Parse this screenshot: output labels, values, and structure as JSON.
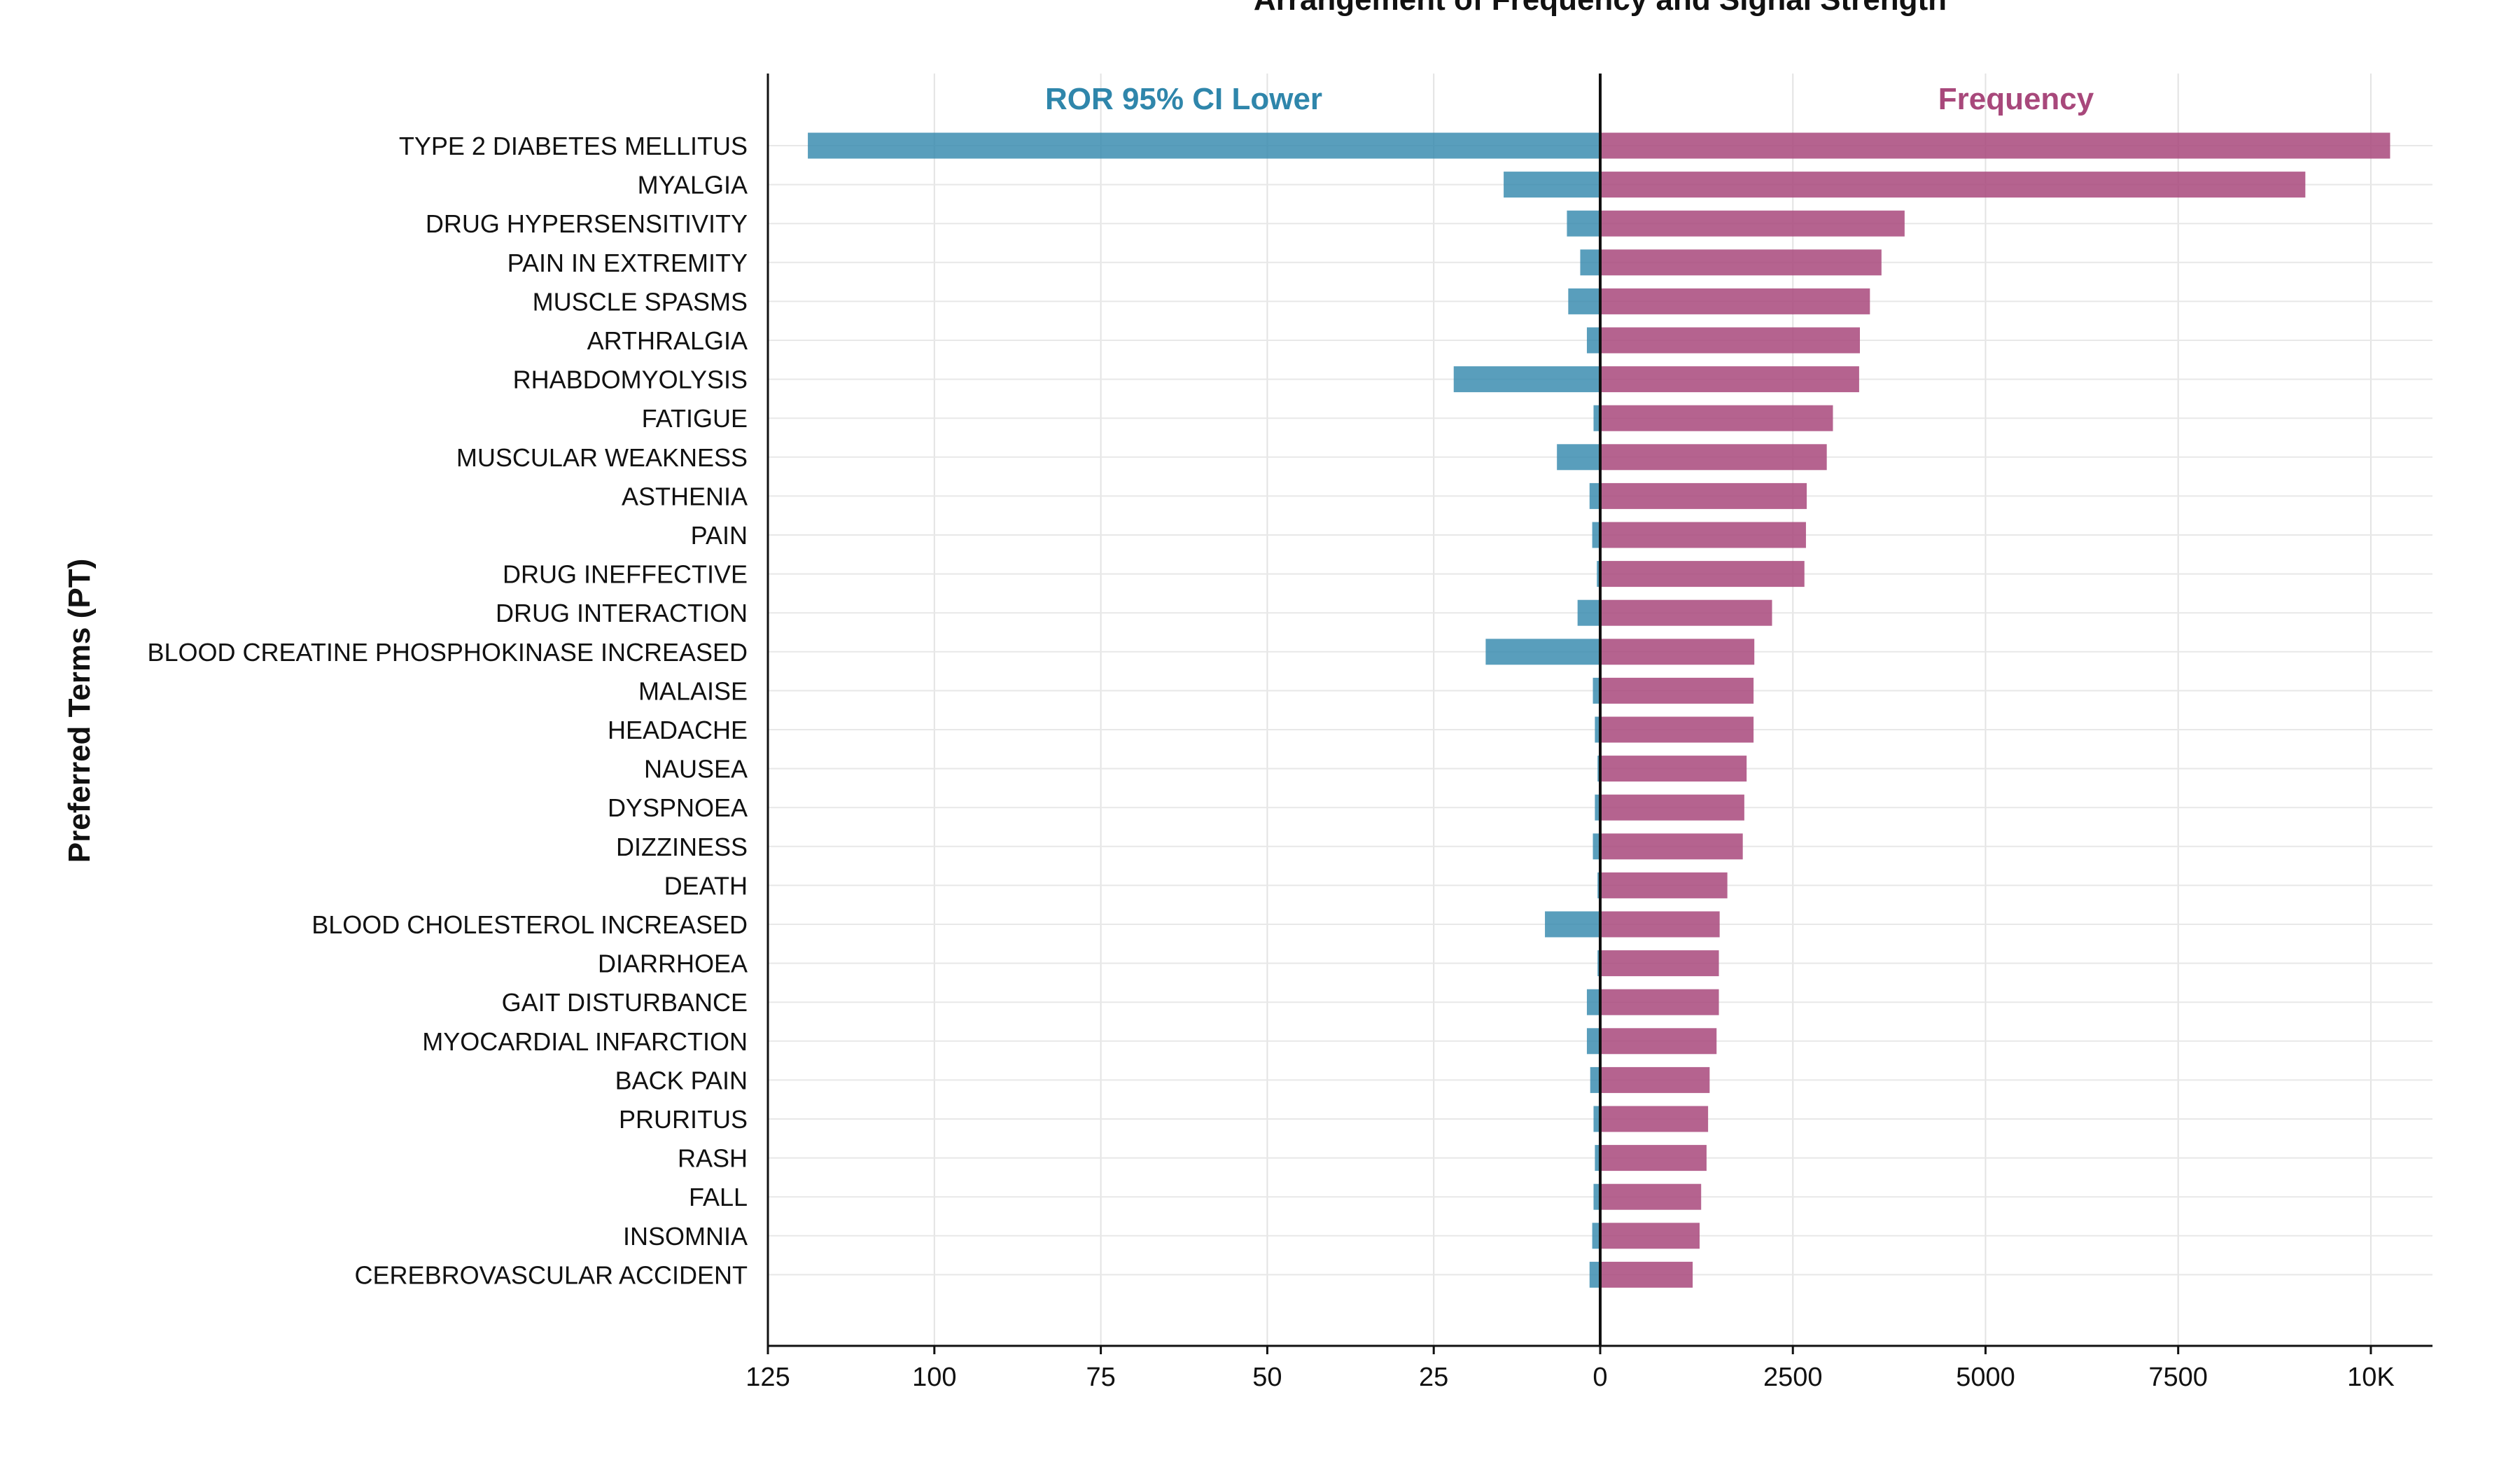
{
  "chart_data": {
    "type": "bar",
    "orientation": "horizontal-diverging",
    "title": "Arrangement of Frequency and Signal Strength",
    "ylabel": "Preferred Terms (PT)",
    "categories": [
      "TYPE 2 DIABETES MELLITUS",
      "MYALGIA",
      "DRUG HYPERSENSITIVITY",
      "PAIN IN EXTREMITY",
      "MUSCLE SPASMS",
      "ARTHRALGIA",
      "RHABDOMYOLYSIS",
      "FATIGUE",
      "MUSCULAR WEAKNESS",
      "ASTHENIA",
      "PAIN",
      "DRUG INEFFECTIVE",
      "DRUG INTERACTION",
      "BLOOD CREATINE PHOSPHOKINASE INCREASED",
      "MALAISE",
      "HEADACHE",
      "NAUSEA",
      "DYSPNOEA",
      "DIZZINESS",
      "DEATH",
      "BLOOD CHOLESTEROL INCREASED",
      "DIARRHOEA",
      "GAIT DISTURBANCE",
      "MYOCARDIAL INFARCTION",
      "BACK PAIN",
      "PRURITUS",
      "RASH",
      "FALL",
      "INSOMNIA",
      "CEREBROVASCULAR ACCIDENT"
    ],
    "series": [
      {
        "name": "ROR 95% CI Lower",
        "side": "left",
        "color": "#2f86ab",
        "xlim": [
          125,
          0
        ],
        "ticks": [
          125,
          100,
          75,
          50,
          25,
          0
        ],
        "values": [
          119,
          14.5,
          5,
          3,
          4.8,
          2,
          22,
          1,
          6.5,
          1.6,
          1.2,
          0.5,
          3.4,
          17.2,
          1.1,
          0.8,
          0.4,
          0.8,
          1.1,
          0.4,
          8.3,
          0.4,
          2,
          2,
          1.5,
          1,
          0.8,
          1,
          1.2,
          1.6
        ]
      },
      {
        "name": "Frequency",
        "side": "right",
        "color": "#a8487b",
        "xlim": [
          0,
          10800
        ],
        "ticks": [
          0,
          2500,
          5000,
          7500,
          10000
        ],
        "values": [
          10250,
          9150,
          3950,
          3650,
          3500,
          3370,
          3360,
          3020,
          2940,
          2680,
          2670,
          2650,
          2230,
          2000,
          1990,
          1990,
          1900,
          1870,
          1850,
          1650,
          1550,
          1540,
          1540,
          1510,
          1420,
          1400,
          1380,
          1310,
          1290,
          1200
        ]
      }
    ],
    "tick_labels": {
      "left": [
        "125",
        "100",
        "75",
        "50",
        "25",
        "0"
      ],
      "right": [
        "2500",
        "5000",
        "7500",
        "10K"
      ]
    },
    "grid": true,
    "legend": "panel-titles-top"
  }
}
